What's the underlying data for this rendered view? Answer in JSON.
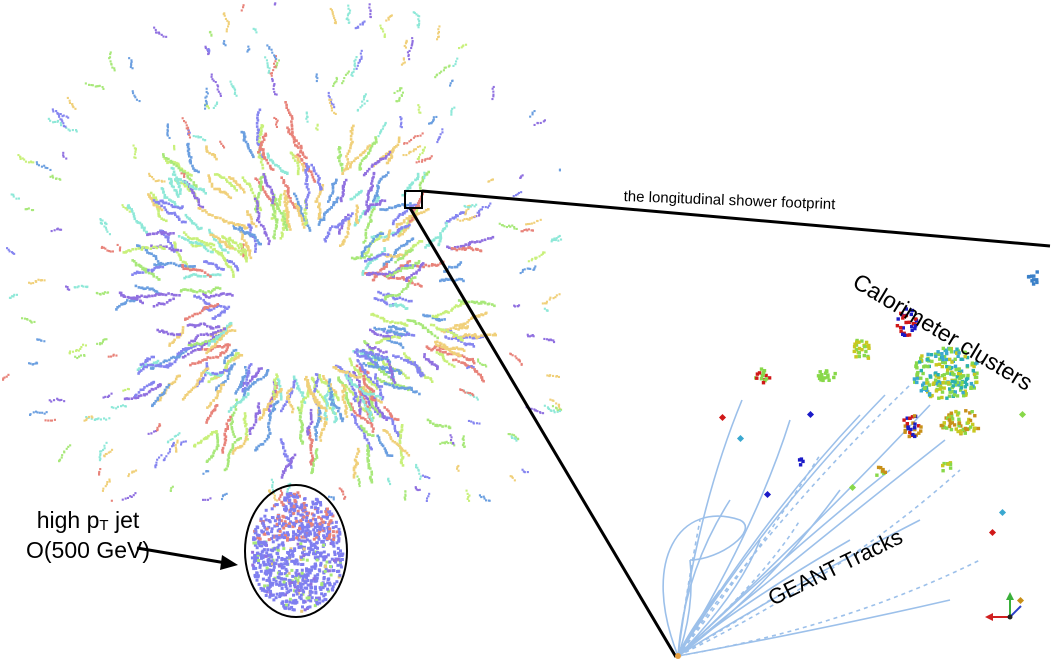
{
  "labels": {
    "jet_line1_pre": "high p",
    "jet_line1_sub": "T",
    "jet_line1_post": " jet",
    "jet_line2": "O(500 GeV)",
    "footprint": "the longitudinal shower footprint",
    "calorimeter": "Calorimeter clusters",
    "geant": "GEANT Tracks"
  },
  "colors": {
    "ring_palette": [
      "#8585f0",
      "#a8e87a",
      "#e8837a",
      "#6b9fe0",
      "#8ee8d8",
      "#f0d07a",
      "#c8f07a",
      "#9070e0"
    ],
    "cluster_palette": [
      "#88d84a",
      "#1a1ac8",
      "#c8c820",
      "#d01818",
      "#3aa8d0",
      "#c89018",
      "#2ab0b0"
    ],
    "track": "#9cc0ea",
    "outline": "#000000"
  },
  "icons": {
    "axis_gizmo": "axis-triad-icon"
  }
}
